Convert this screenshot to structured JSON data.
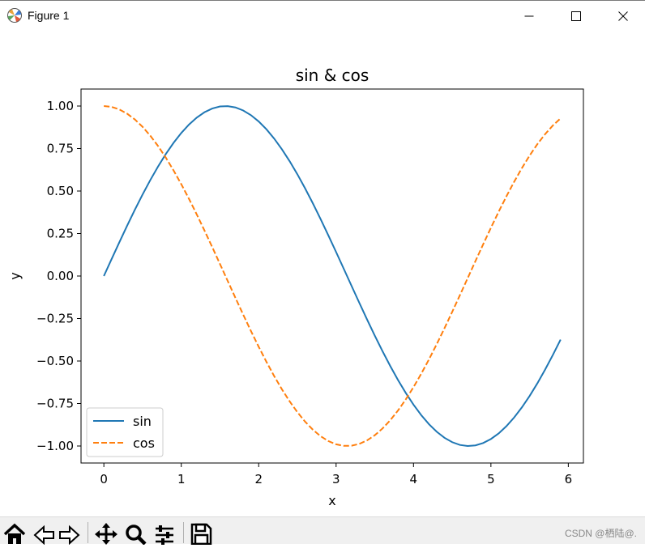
{
  "window": {
    "title": "Figure 1"
  },
  "colors": {
    "sin": "#1f77b4",
    "cos": "#ff7f0e"
  },
  "chart_data": {
    "type": "line",
    "title": "sin & cos",
    "xlabel": "x",
    "ylabel": "y",
    "xlim": [
      -0.295,
      6.195
    ],
    "ylim": [
      -1.1,
      1.1
    ],
    "xticks": [
      0,
      1,
      2,
      3,
      4,
      5,
      6
    ],
    "xtick_labels": [
      "0",
      "1",
      "2",
      "3",
      "4",
      "5",
      "6"
    ],
    "yticks": [
      1.0,
      0.75,
      0.5,
      0.25,
      0.0,
      -0.25,
      -0.5,
      -0.75,
      -1.0
    ],
    "ytick_labels": [
      "1.00",
      "0.75",
      "0.50",
      "0.25",
      "0.00",
      "−0.25",
      "−0.50",
      "−0.75",
      "−1.00"
    ],
    "grid": false,
    "legend_position": "lower-left",
    "x": [
      0.0,
      0.1,
      0.2,
      0.3,
      0.4,
      0.5,
      0.6,
      0.7,
      0.8,
      0.9,
      1.0,
      1.1,
      1.2,
      1.3,
      1.4,
      1.5,
      1.6,
      1.7,
      1.8,
      1.9,
      2.0,
      2.1,
      2.2,
      2.3,
      2.4,
      2.5,
      2.6,
      2.7,
      2.8,
      2.9,
      3.0,
      3.1,
      3.2,
      3.3,
      3.4,
      3.5,
      3.6,
      3.7,
      3.8,
      3.9,
      4.0,
      4.1,
      4.2,
      4.3,
      4.4,
      4.5,
      4.6,
      4.7,
      4.8,
      4.9,
      5.0,
      5.1,
      5.2,
      5.3,
      5.4,
      5.5,
      5.6,
      5.7,
      5.8,
      5.9
    ],
    "series": [
      {
        "name": "sin",
        "style": "solid",
        "values": [
          0.0,
          0.0998,
          0.1987,
          0.2955,
          0.3894,
          0.4794,
          0.5646,
          0.6442,
          0.7174,
          0.7833,
          0.8415,
          0.8912,
          0.932,
          0.9636,
          0.9854,
          0.9975,
          0.9996,
          0.9917,
          0.9738,
          0.9463,
          0.9093,
          0.8632,
          0.8085,
          0.7457,
          0.6755,
          0.5985,
          0.5155,
          0.4274,
          0.335,
          0.2392,
          0.1411,
          0.0416,
          -0.0584,
          -0.1577,
          -0.2555,
          -0.3508,
          -0.4425,
          -0.5298,
          -0.6119,
          -0.6878,
          -0.7568,
          -0.8183,
          -0.8716,
          -0.9162,
          -0.9516,
          -0.9775,
          -0.9937,
          -0.9999,
          -0.9962,
          -0.9825,
          -0.9589,
          -0.9258,
          -0.8835,
          -0.8323,
          -0.7728,
          -0.7055,
          -0.6313,
          -0.5507,
          -0.4646,
          -0.3739
        ]
      },
      {
        "name": "cos",
        "style": "dashed",
        "values": [
          1.0,
          0.995,
          0.9801,
          0.9553,
          0.9211,
          0.8776,
          0.8253,
          0.7648,
          0.6967,
          0.6216,
          0.5403,
          0.4536,
          0.3624,
          0.2675,
          0.17,
          0.0707,
          -0.0292,
          -0.1288,
          -0.2272,
          -0.3233,
          -0.4161,
          -0.5048,
          -0.5885,
          -0.6663,
          -0.7374,
          -0.8011,
          -0.8569,
          -0.9041,
          -0.9422,
          -0.971,
          -0.99,
          -0.9991,
          -0.9983,
          -0.9875,
          -0.9668,
          -0.9365,
          -0.8968,
          -0.8481,
          -0.791,
          -0.7259,
          -0.6536,
          -0.5748,
          -0.4903,
          -0.4008,
          -0.3073,
          -0.2108,
          -0.1122,
          -0.0124,
          0.0875,
          0.1865,
          0.2837,
          0.378,
          0.4685,
          0.5544,
          0.6347,
          0.7087,
          0.7756,
          0.8347,
          0.8855,
          0.9275
        ]
      }
    ]
  },
  "toolbar": {
    "buttons": [
      {
        "name": "home-icon"
      },
      {
        "name": "back-icon"
      },
      {
        "name": "forward-icon"
      },
      {
        "name": "pan-icon"
      },
      {
        "name": "zoom-icon"
      },
      {
        "name": "configure-subplots-icon"
      },
      {
        "name": "save-icon"
      }
    ]
  },
  "watermark": "CSDN @栖陆@."
}
